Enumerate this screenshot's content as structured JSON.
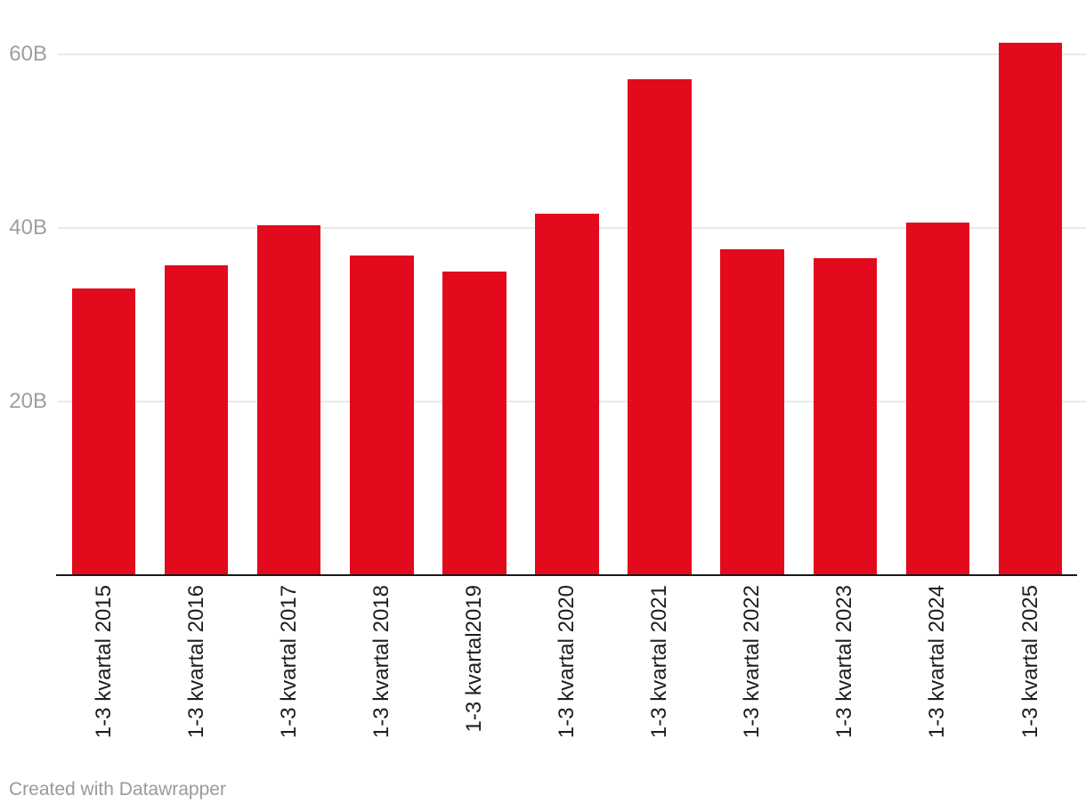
{
  "chart_data": {
    "type": "bar",
    "categories": [
      "1-3 kvartal 2015",
      "1-3 kvartal 2016",
      "1-3 kvartal 2017",
      "1-3 kvartal 2018",
      "1-3 kvartal2019",
      "1-3 kvartal 2020",
      "1-3 kvartal 2021",
      "1-3 kvartal 2022",
      "1-3 kvartal 2023",
      "1-3 kvartal 2024",
      "1-3 kvartal 2025"
    ],
    "values": [
      33.0,
      35.7,
      40.3,
      36.8,
      35.0,
      41.6,
      57.1,
      37.5,
      36.5,
      40.6,
      61.3
    ],
    "value_unit": "B",
    "title": "",
    "xlabel": "",
    "ylabel": "",
    "ylim": [
      0,
      66
    ],
    "yticks": [
      20,
      40,
      60
    ],
    "ytick_labels": [
      "20B",
      "40B",
      "60B"
    ],
    "grid": true,
    "legend": "none"
  },
  "colors": {
    "bar": "#e20a1c",
    "grid": "#e9e9e9",
    "axis": "#1a1a1a",
    "tick_label": "#9e9e9e",
    "x_label": "#1d1d1d",
    "footer": "#9a9a9a",
    "background": "#ffffff"
  },
  "footer": {
    "attribution": "Created with Datawrapper"
  }
}
